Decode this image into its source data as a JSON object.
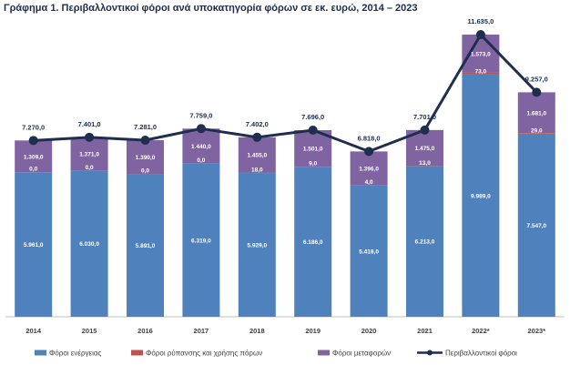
{
  "title": "Γράφημα 1. Περιβαλλοντικοί φόροι ανά υποκατηγορία φόρων σε εκ. ευρώ, 2014 – 2023",
  "colors": {
    "energy": "#4f81bd",
    "pollution": "#c0504d",
    "transport": "#8064a2",
    "total_line": "#1f2d4e"
  },
  "chart_data": {
    "type": "bar",
    "stacked": true,
    "categories": [
      "2014",
      "2015",
      "2016",
      "2017",
      "2018",
      "2019",
      "2020",
      "2021",
      "2022*",
      "2023*"
    ],
    "series": [
      {
        "name": "Φόροι ενέργειας",
        "values": [
          5961.0,
          6030.0,
          5891.0,
          6319.0,
          5929.0,
          6186.0,
          5418.0,
          6213.0,
          9989.0,
          7547.0
        ],
        "labels": [
          "5.961,0",
          "6.030,0",
          "5.891,0",
          "6.319,0",
          "5.929,0",
          "6.186,0",
          "5.418,0",
          "6.213,0",
          "9.989,0",
          "7.547,0"
        ]
      },
      {
        "name": "Φόροι ρύπανσης και χρήσης πόρων",
        "values": [
          0.0,
          0.0,
          0.0,
          0.0,
          18.0,
          9.0,
          4.0,
          13.0,
          73.0,
          29.0
        ],
        "labels": [
          "0,0",
          "0,0",
          "0,0",
          "0,0",
          "18,0",
          "9,0",
          "4,0",
          "13,0",
          "73,0",
          "29,0"
        ]
      },
      {
        "name": "Φόροι μεταφορών",
        "values": [
          1309.0,
          1371.0,
          1390.0,
          1440.0,
          1455.0,
          1501.0,
          1396.0,
          1475.0,
          1573.0,
          1681.0
        ],
        "labels": [
          "1.309,0",
          "1.371,0",
          "1.390,0",
          "1.440,0",
          "1.455,0",
          "1.501,0",
          "1.396,0",
          "1.475,0",
          "1.573,0",
          "1.681,0"
        ]
      }
    ],
    "line": {
      "name": "Περιβαλλοντικοί φόροι",
      "values": [
        7270.0,
        7401.0,
        7281.0,
        7759.0,
        7402.0,
        7696.0,
        6818.0,
        7701.0,
        11635.0,
        9257.0
      ],
      "labels": [
        "7.270,0",
        "7.401,0",
        "7.281,0",
        "7.759,0",
        "7.402,0",
        "7.696,0",
        "6.818,0",
        "7.701,0",
        "11.635,0",
        "9.257,0"
      ]
    },
    "ylim": [
      0,
      12500
    ],
    "grid": false,
    "legend_position": "bottom"
  }
}
